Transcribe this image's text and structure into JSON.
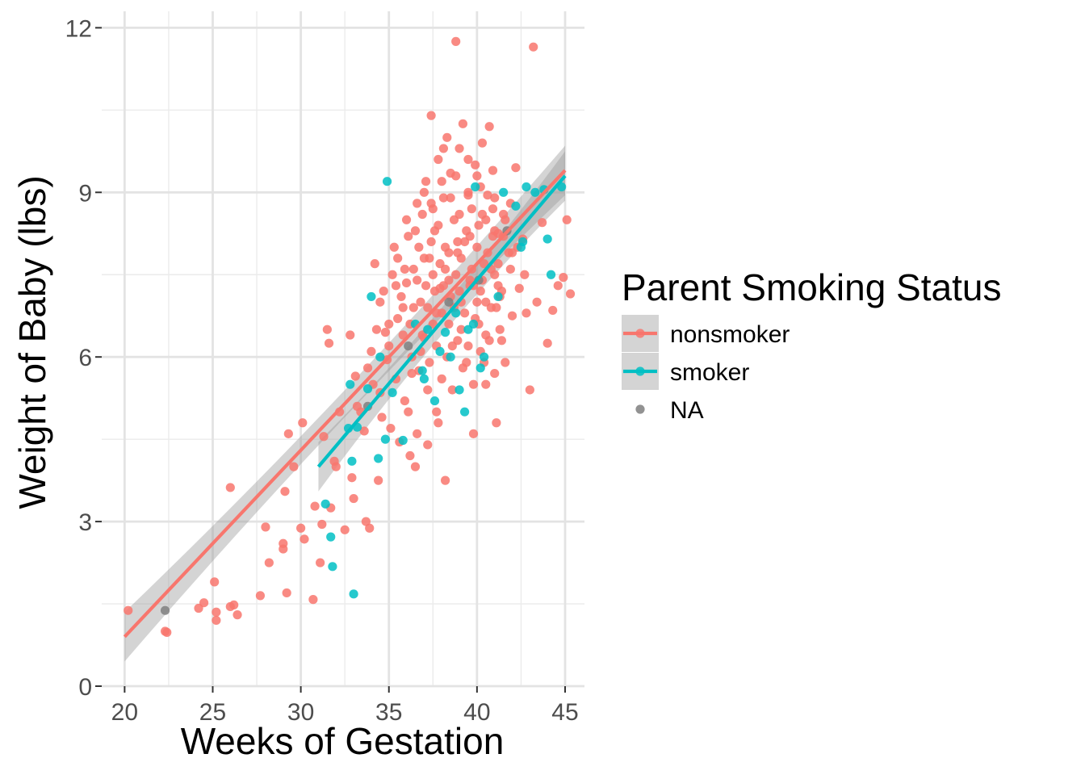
{
  "chart_data": {
    "type": "scatter",
    "title": "",
    "xlabel": "Weeks of Gestation",
    "ylabel": "Weight of Baby (lbs)",
    "xlim": [
      18.7,
      46.1
    ],
    "ylim": [
      0,
      12.3
    ],
    "x_ticks": [
      20,
      25,
      30,
      35,
      40,
      45
    ],
    "y_ticks": [
      0,
      3,
      6,
      9,
      12
    ],
    "grid": true,
    "legend": {
      "title": "Parent Smoking Status",
      "placement": "right",
      "entries": [
        {
          "label": "nonsmoker",
          "color": "#F8766D",
          "has_line": true
        },
        {
          "label": "smoker",
          "color": "#00BFC4",
          "has_line": true
        },
        {
          "label": "NA",
          "color": "#7F7F7F",
          "has_line": false
        }
      ]
    },
    "band_color": "#999999",
    "series": [
      {
        "name": "nonsmoker",
        "color": "#F8766D",
        "trend": {
          "x": [
            20.0,
            45.0
          ],
          "y": [
            0.9,
            9.4
          ],
          "band": 0.45
        },
        "points": [
          [
            20.2,
            1.38
          ],
          [
            22.3,
            1.0
          ],
          [
            22.4,
            0.98
          ],
          [
            24.2,
            1.42
          ],
          [
            24.5,
            1.52
          ],
          [
            25.1,
            1.9
          ],
          [
            25.2,
            1.35
          ],
          [
            25.2,
            1.2
          ],
          [
            26.0,
            1.45
          ],
          [
            26.2,
            1.48
          ],
          [
            26.4,
            1.3
          ],
          [
            26.0,
            3.62
          ],
          [
            27.7,
            1.65
          ],
          [
            28.0,
            2.9
          ],
          [
            28.2,
            2.25
          ],
          [
            29.0,
            2.6
          ],
          [
            29.0,
            2.5
          ],
          [
            29.1,
            3.55
          ],
          [
            29.2,
            1.7
          ],
          [
            29.3,
            4.6
          ],
          [
            29.6,
            4.0
          ],
          [
            30.0,
            2.88
          ],
          [
            30.1,
            4.8
          ],
          [
            30.2,
            2.68
          ],
          [
            30.7,
            1.58
          ],
          [
            30.8,
            3.28
          ],
          [
            31.1,
            2.25
          ],
          [
            31.2,
            2.95
          ],
          [
            31.3,
            4.55
          ],
          [
            31.5,
            6.5
          ],
          [
            31.6,
            6.25
          ],
          [
            31.7,
            3.25
          ],
          [
            31.9,
            4.1
          ],
          [
            32.0,
            4.0
          ],
          [
            32.2,
            5.0
          ],
          [
            32.5,
            2.85
          ],
          [
            32.8,
            6.4
          ],
          [
            32.9,
            3.8
          ],
          [
            33.0,
            3.42
          ],
          [
            33.1,
            5.65
          ],
          [
            33.2,
            5.1
          ],
          [
            33.4,
            5.0
          ],
          [
            33.6,
            4.65
          ],
          [
            33.7,
            3.0
          ],
          [
            33.8,
            5.8
          ],
          [
            33.9,
            2.88
          ],
          [
            34.0,
            6.1
          ],
          [
            34.1,
            5.5
          ],
          [
            34.2,
            7.7
          ],
          [
            34.3,
            6.5
          ],
          [
            34.4,
            3.75
          ],
          [
            34.5,
            5.35
          ],
          [
            34.6,
            4.9
          ],
          [
            34.7,
            7.2
          ],
          [
            34.8,
            6.45
          ],
          [
            34.9,
            5.95
          ],
          [
            35.0,
            6.2
          ],
          [
            35.1,
            4.7
          ],
          [
            35.2,
            7.5
          ],
          [
            35.3,
            8.0
          ],
          [
            35.4,
            5.6
          ],
          [
            35.5,
            6.7
          ],
          [
            35.6,
            4.45
          ],
          [
            35.7,
            7.1
          ],
          [
            35.8,
            6.9
          ],
          [
            35.9,
            5.2
          ],
          [
            36.0,
            7.35
          ],
          [
            36.1,
            8.2
          ],
          [
            36.2,
            4.2
          ],
          [
            36.3,
            6.0
          ],
          [
            36.4,
            7.6
          ],
          [
            36.5,
            4.0
          ],
          [
            36.6,
            8.8
          ],
          [
            36.7,
            5.75
          ],
          [
            36.8,
            7.0
          ],
          [
            36.9,
            8.6
          ],
          [
            37.0,
            6.35
          ],
          [
            37.1,
            9.2
          ],
          [
            37.2,
            5.4
          ],
          [
            37.3,
            7.8
          ],
          [
            37.4,
            10.4
          ],
          [
            37.5,
            6.6
          ],
          [
            37.6,
            8.3
          ],
          [
            37.7,
            5.0
          ],
          [
            37.8,
            9.6
          ],
          [
            37.9,
            7.25
          ],
          [
            38.0,
            6.8
          ],
          [
            38.1,
            8.9
          ],
          [
            38.2,
            3.75
          ],
          [
            38.3,
            10.0
          ],
          [
            38.4,
            7.4
          ],
          [
            38.5,
            9.35
          ],
          [
            38.6,
            6.2
          ],
          [
            38.7,
            8.5
          ],
          [
            38.8,
            11.75
          ],
          [
            38.9,
            7.9
          ],
          [
            39.0,
            9.8
          ],
          [
            39.1,
            6.5
          ],
          [
            39.2,
            10.25
          ],
          [
            39.3,
            8.1
          ],
          [
            39.4,
            5.9
          ],
          [
            39.5,
            9.0
          ],
          [
            39.6,
            7.3
          ],
          [
            39.7,
            8.7
          ],
          [
            39.8,
            4.6
          ],
          [
            39.9,
            9.5
          ],
          [
            40.0,
            7.0
          ],
          [
            40.1,
            8.4
          ],
          [
            40.2,
            6.1
          ],
          [
            40.3,
            9.9
          ],
          [
            40.4,
            7.7
          ],
          [
            40.5,
            5.5
          ],
          [
            40.6,
            8.95
          ],
          [
            40.7,
            10.2
          ],
          [
            40.8,
            6.9
          ],
          [
            40.9,
            9.4
          ],
          [
            41.0,
            7.5
          ],
          [
            41.1,
            4.8
          ],
          [
            41.2,
            8.25
          ],
          [
            41.3,
            7.1
          ],
          [
            41.4,
            6.3
          ],
          [
            41.5,
            8.6
          ],
          [
            41.6,
            5.9
          ],
          [
            41.8,
            7.9
          ],
          [
            41.9,
            8.8
          ],
          [
            42.0,
            6.75
          ],
          [
            42.2,
            9.45
          ],
          [
            42.4,
            7.25
          ],
          [
            42.6,
            8.15
          ],
          [
            42.8,
            6.8
          ],
          [
            43.0,
            5.4
          ],
          [
            43.2,
            11.65
          ],
          [
            43.4,
            7.0
          ],
          [
            43.7,
            8.45
          ],
          [
            44.0,
            6.25
          ],
          [
            44.3,
            6.85
          ],
          [
            44.6,
            7.3
          ],
          [
            44.9,
            7.45
          ],
          [
            45.1,
            8.5
          ],
          [
            45.3,
            7.15
          ],
          [
            36.3,
            5.7
          ],
          [
            36.8,
            6.1
          ],
          [
            37.2,
            6.9
          ],
          [
            37.6,
            7.2
          ],
          [
            37.9,
            7.7
          ],
          [
            38.2,
            8.0
          ],
          [
            38.5,
            7.1
          ],
          [
            38.8,
            7.5
          ],
          [
            39.1,
            7.8
          ],
          [
            39.4,
            8.3
          ],
          [
            39.7,
            7.6
          ],
          [
            40.0,
            8.0
          ],
          [
            40.3,
            7.4
          ],
          [
            40.6,
            7.9
          ],
          [
            40.9,
            8.2
          ],
          [
            41.2,
            7.7
          ],
          [
            36.6,
            7.4
          ],
          [
            37.0,
            7.8
          ],
          [
            37.4,
            8.1
          ],
          [
            37.8,
            8.4
          ],
          [
            38.1,
            7.3
          ],
          [
            38.4,
            6.6
          ],
          [
            38.7,
            6.9
          ],
          [
            39.0,
            7.2
          ],
          [
            39.3,
            6.8
          ],
          [
            39.6,
            7.4
          ],
          [
            39.9,
            6.7
          ],
          [
            40.2,
            7.2
          ],
          [
            40.5,
            6.4
          ],
          [
            40.8,
            7.6
          ],
          [
            41.1,
            6.9
          ],
          [
            41.4,
            7.2
          ],
          [
            35.5,
            7.8
          ],
          [
            36.0,
            8.5
          ],
          [
            36.5,
            8.3
          ],
          [
            37.0,
            9.0
          ],
          [
            37.5,
            8.7
          ],
          [
            38.0,
            9.2
          ],
          [
            38.5,
            8.9
          ],
          [
            39.0,
            8.6
          ],
          [
            39.5,
            8.95
          ],
          [
            40.0,
            9.3
          ],
          [
            40.5,
            8.5
          ],
          [
            41.0,
            8.9
          ],
          [
            41.5,
            8.2
          ],
          [
            42.0,
            7.9
          ],
          [
            36.2,
            6.6
          ],
          [
            36.9,
            6.4
          ],
          [
            37.3,
            5.9
          ],
          [
            37.7,
            6.2
          ],
          [
            38.0,
            5.6
          ],
          [
            38.3,
            6.0
          ],
          [
            38.6,
            5.4
          ],
          [
            38.9,
            6.3
          ],
          [
            39.2,
            5.8
          ],
          [
            39.5,
            6.2
          ],
          [
            39.8,
            5.5
          ],
          [
            40.1,
            6.6
          ],
          [
            40.4,
            5.9
          ],
          [
            40.7,
            6.3
          ],
          [
            41.0,
            5.7
          ],
          [
            41.3,
            6.5
          ],
          [
            37.5,
            7.5
          ],
          [
            38.2,
            7.6
          ],
          [
            38.9,
            8.1
          ],
          [
            39.6,
            8.2
          ],
          [
            40.3,
            8.6
          ],
          [
            41.0,
            8.3
          ],
          [
            35.8,
            6.4
          ],
          [
            36.4,
            6.9
          ],
          [
            37.1,
            7.3
          ],
          [
            37.7,
            6.8
          ],
          [
            38.4,
            7.9
          ],
          [
            39.1,
            7.0
          ],
          [
            39.8,
            7.3
          ],
          [
            40.5,
            7.0
          ],
          [
            41.2,
            7.3
          ],
          [
            41.9,
            7.6
          ],
          [
            42.3,
            8.0
          ],
          [
            42.7,
            7.5
          ],
          [
            34.5,
            7.0
          ],
          [
            35.0,
            6.6
          ],
          [
            35.4,
            7.3
          ],
          [
            35.9,
            7.6
          ],
          [
            36.7,
            8.0
          ],
          [
            37.4,
            8.8
          ],
          [
            38.1,
            9.8
          ],
          [
            38.8,
            9.3
          ],
          [
            39.5,
            9.6
          ],
          [
            40.2,
            9.1
          ],
          [
            40.9,
            8.7
          ],
          [
            41.6,
            8.5
          ],
          [
            36.1,
            5.0
          ],
          [
            36.6,
            4.6
          ],
          [
            37.2,
            4.4
          ],
          [
            37.8,
            4.8
          ]
        ]
      },
      {
        "name": "smoker",
        "color": "#00BFC4",
        "trend": {
          "x": [
            31.0,
            45.0
          ],
          "y": [
            4.0,
            9.3
          ],
          "band": 0.45
        },
        "points": [
          [
            31.4,
            3.32
          ],
          [
            31.7,
            2.72
          ],
          [
            31.8,
            2.18
          ],
          [
            32.7,
            4.7
          ],
          [
            32.8,
            5.5
          ],
          [
            32.9,
            4.1
          ],
          [
            33.0,
            1.68
          ],
          [
            33.2,
            4.72
          ],
          [
            33.8,
            5.42
          ],
          [
            34.0,
            7.1
          ],
          [
            34.4,
            4.15
          ],
          [
            34.5,
            6.0
          ],
          [
            34.8,
            4.5
          ],
          [
            34.9,
            9.2
          ],
          [
            35.2,
            5.35
          ],
          [
            35.8,
            4.48
          ],
          [
            36.5,
            6.6
          ],
          [
            36.9,
            5.75
          ],
          [
            37.0,
            5.6
          ],
          [
            37.2,
            6.5
          ],
          [
            37.6,
            5.2
          ],
          [
            37.9,
            6.1
          ],
          [
            38.2,
            6.45
          ],
          [
            38.5,
            6.0
          ],
          [
            38.8,
            6.8
          ],
          [
            39.0,
            5.4
          ],
          [
            39.3,
            5.0
          ],
          [
            39.5,
            6.5
          ],
          [
            39.8,
            6.6
          ],
          [
            39.9,
            9.1
          ],
          [
            40.2,
            5.8
          ],
          [
            40.4,
            6.0
          ],
          [
            41.2,
            7.1
          ],
          [
            41.5,
            9.0
          ],
          [
            42.2,
            8.75
          ],
          [
            42.5,
            8.0
          ],
          [
            42.6,
            8.1
          ],
          [
            42.8,
            9.1
          ],
          [
            43.3,
            9.0
          ],
          [
            43.8,
            9.05
          ],
          [
            44.0,
            8.15
          ],
          [
            44.2,
            7.5
          ],
          [
            44.8,
            9.1
          ]
        ]
      },
      {
        "name": "NA",
        "color": "#7F7F7F",
        "trend": null,
        "points": [
          [
            22.3,
            1.38
          ],
          [
            33.8,
            5.1
          ],
          [
            36.1,
            6.2
          ],
          [
            38.4,
            7.0
          ],
          [
            40.1,
            7.4
          ],
          [
            41.7,
            8.3
          ]
        ]
      }
    ]
  }
}
